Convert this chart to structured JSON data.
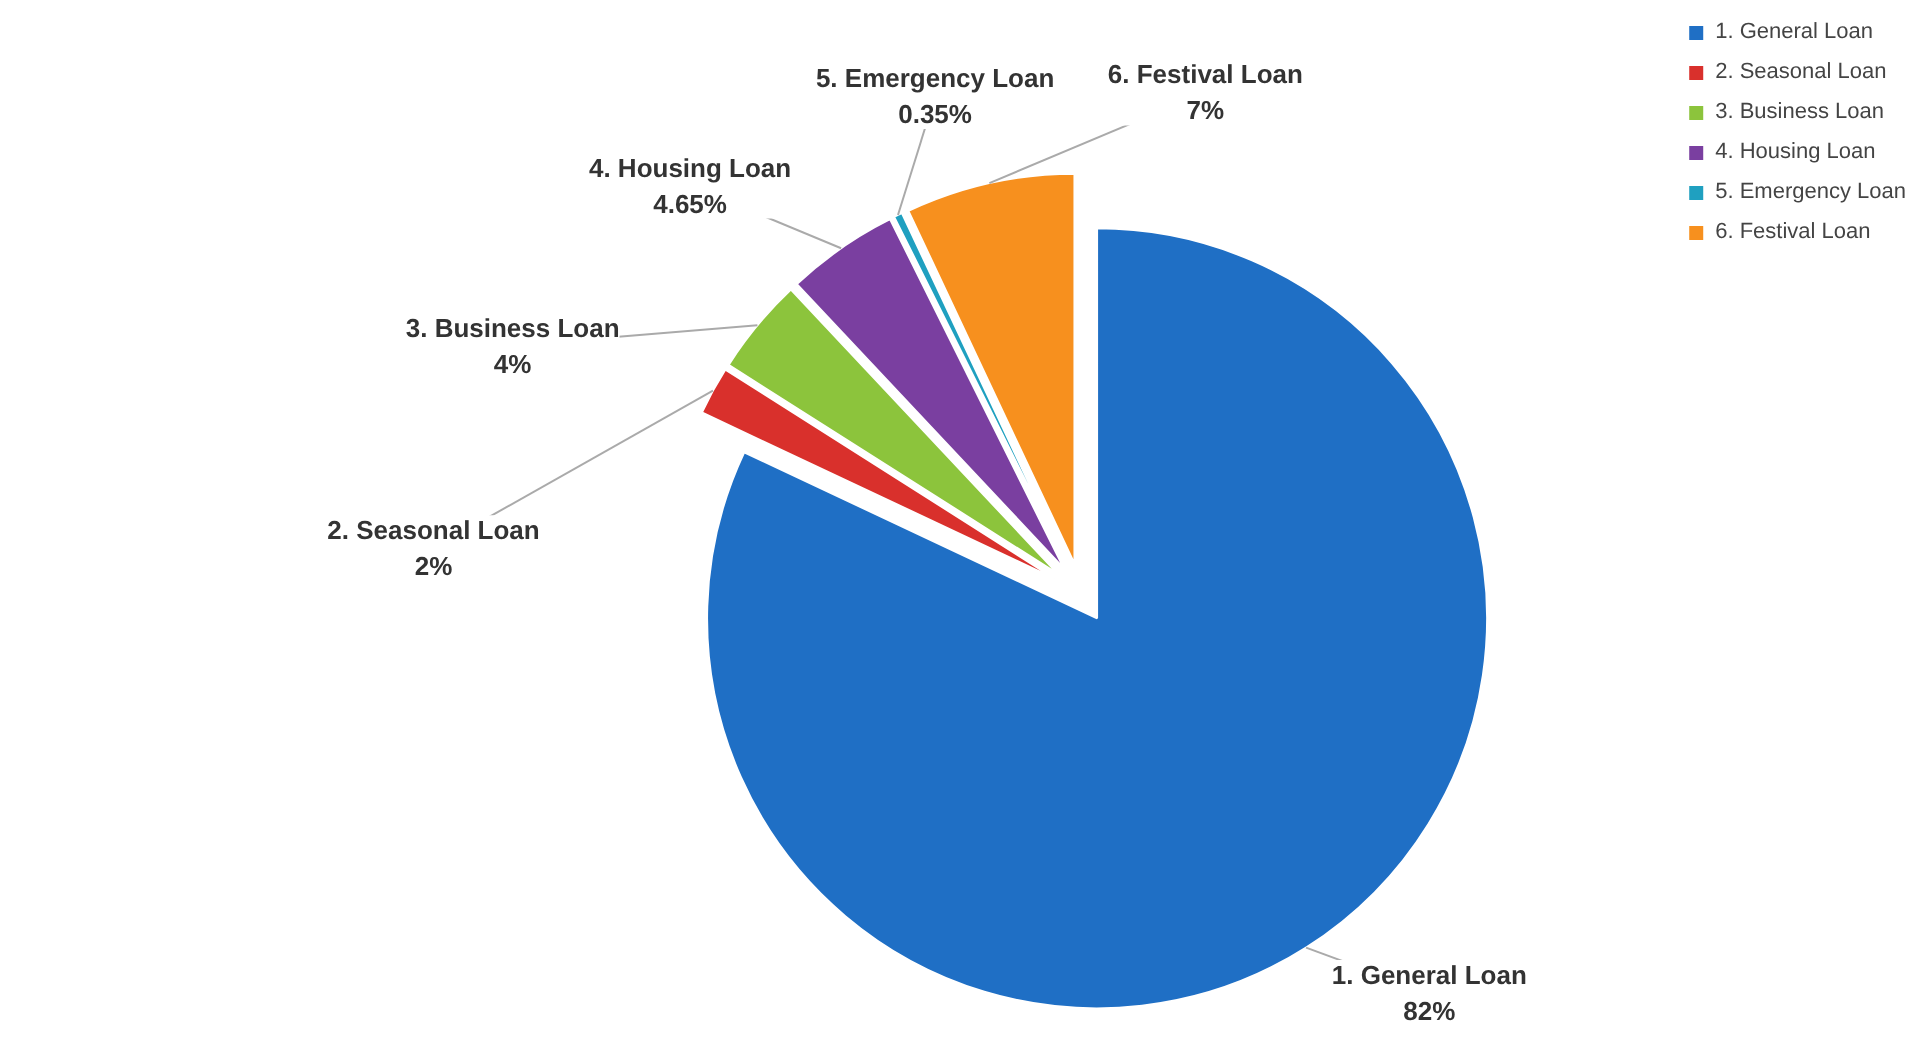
{
  "chart_data": {
    "type": "pie",
    "categories": [
      "1. General Loan",
      "2. Seasonal Loan",
      "3. Business Loan",
      "4. Housing Loan",
      "5. Emergency Loan",
      "6. Festival Loan"
    ],
    "values": [
      82,
      2,
      4,
      4.65,
      0.35,
      7
    ],
    "colors": [
      "#1f6fc5",
      "#d9302c",
      "#8cc43c",
      "#7a3fa0",
      "#1fa0c0",
      "#f7901e"
    ],
    "value_labels": [
      "82%",
      "2%",
      "4%",
      "4.65%",
      "0.35%",
      "7%"
    ],
    "legend": "right"
  }
}
